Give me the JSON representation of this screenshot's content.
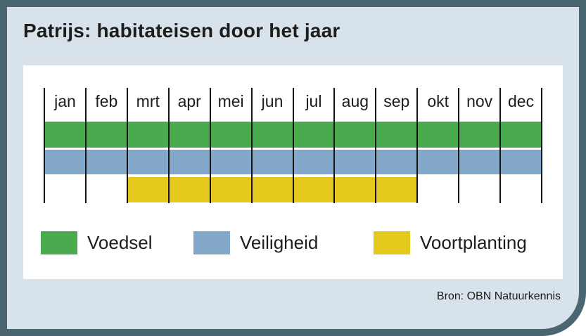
{
  "card": {
    "title": "Patrijs: habitateisen door het jaar",
    "source": "Bron: OBN Natuurkennis",
    "colors": {
      "border": "#4a6670",
      "background": "#d7e2ea",
      "panel": "#ffffff",
      "gridline": "#141414",
      "text": "#1d1d1b"
    }
  },
  "chart_data": {
    "type": "bar",
    "subtype": "horizontal-month-timeline-bands",
    "title": "Patrijs: habitateisen door het jaar",
    "categories": [
      "jan",
      "feb",
      "mrt",
      "apr",
      "mei",
      "jun",
      "jul",
      "aug",
      "sep",
      "okt",
      "nov",
      "dec"
    ],
    "series": [
      {
        "name": "Voedsel",
        "color": "#4aaa4e",
        "start": "jan",
        "end": "dec",
        "start_index": 0,
        "end_index": 12
      },
      {
        "name": "Veiligheid",
        "color": "#82a7c8",
        "start": "jan",
        "end": "dec",
        "start_index": 0,
        "end_index": 12
      },
      {
        "name": "Voortplanting",
        "color": "#e2c91b",
        "start": "mrt",
        "end": "sep",
        "start_index": 2,
        "end_index": 9
      }
    ],
    "xlabel": "",
    "ylabel": "",
    "grid": "vertical-month-separators",
    "legend_position": "bottom",
    "source": "Bron: OBN Natuurkennis"
  }
}
